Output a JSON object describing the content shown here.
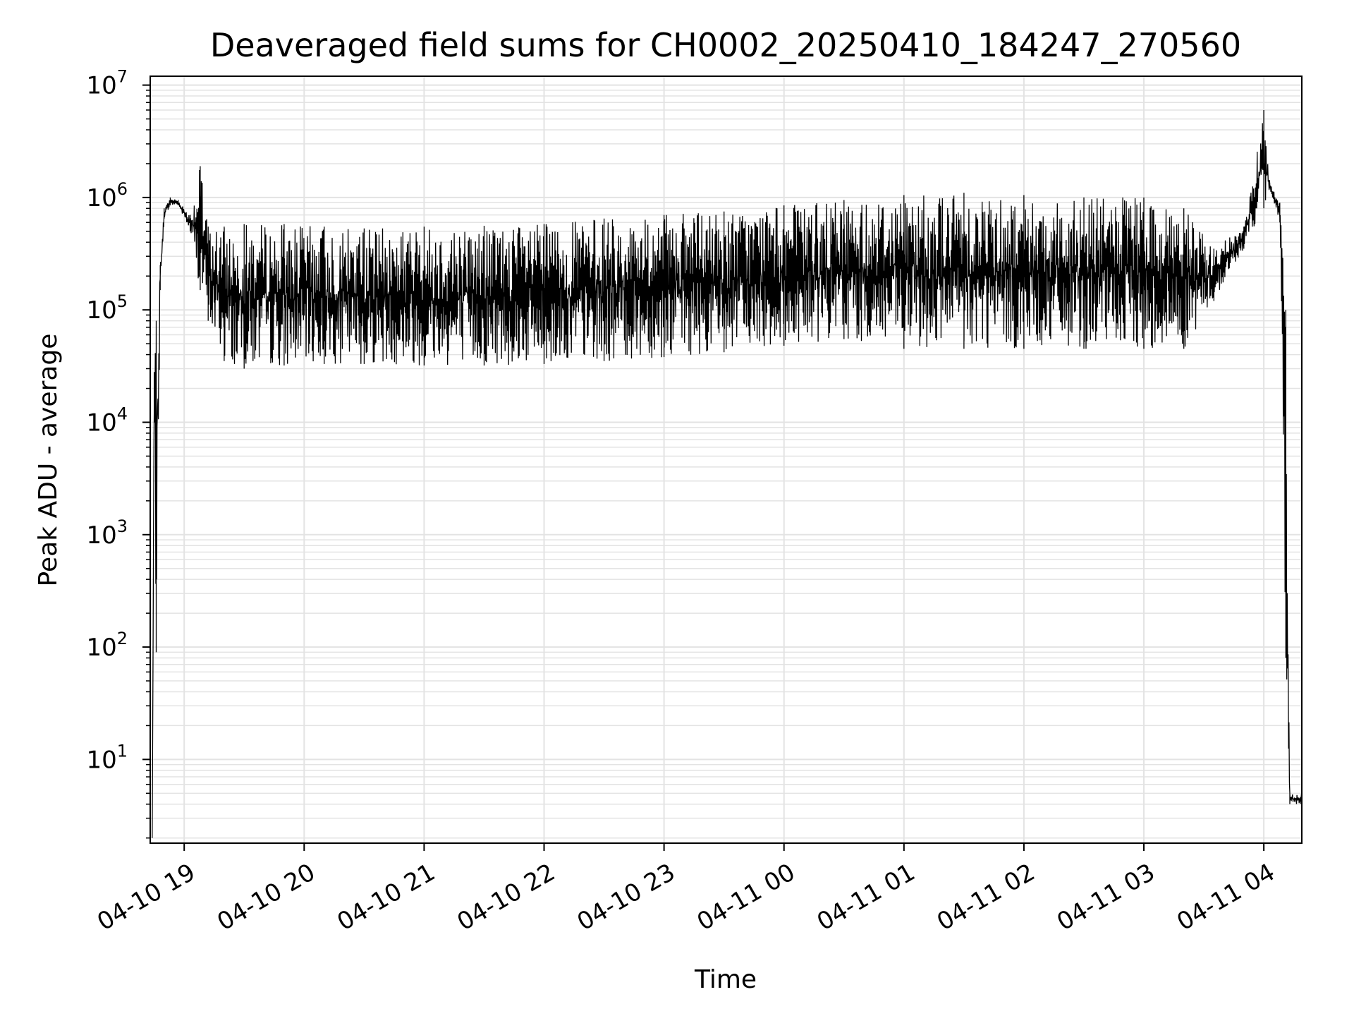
{
  "chart_data": {
    "type": "line",
    "title": "Deaveraged field sums for CH0002_20250410_184247_270560",
    "xlabel": "Time",
    "ylabel": "Peak ADU - average",
    "y_scale": "log",
    "ylim": [
      1.8,
      12000000
    ],
    "xlim": [
      "04-10 18:43",
      "04-11 04:19"
    ],
    "grid": true,
    "line_color": "#000000",
    "grid_color": "#e3e3e3",
    "x_ticks": [
      {
        "value": "04-10 19:00",
        "label": "04-10 19"
      },
      {
        "value": "04-10 20:00",
        "label": "04-10 20"
      },
      {
        "value": "04-10 21:00",
        "label": "04-10 21"
      },
      {
        "value": "04-10 22:00",
        "label": "04-10 22"
      },
      {
        "value": "04-10 23:00",
        "label": "04-10 23"
      },
      {
        "value": "04-11 00:00",
        "label": "04-11 00"
      },
      {
        "value": "04-11 01:00",
        "label": "04-11 01"
      },
      {
        "value": "04-11 02:00",
        "label": "04-11 02"
      },
      {
        "value": "04-11 03:00",
        "label": "04-11 03"
      },
      {
        "value": "04-11 04:00",
        "label": "04-11 04"
      }
    ],
    "y_ticks": [
      {
        "value": 10,
        "base": "10",
        "exp": "1"
      },
      {
        "value": 100,
        "base": "10",
        "exp": "2"
      },
      {
        "value": 1000,
        "base": "10",
        "exp": "3"
      },
      {
        "value": 10000,
        "base": "10",
        "exp": "4"
      },
      {
        "value": 100000,
        "base": "10",
        "exp": "5"
      },
      {
        "value": 1000000,
        "base": "10",
        "exp": "6"
      },
      {
        "value": 10000000,
        "base": "10",
        "exp": "7"
      }
    ],
    "series": [
      {
        "style": "noisy-band",
        "points": [
          {
            "x": "04-10 18:44",
            "low": 2,
            "high": 2
          },
          {
            "x": "04-10 18:45",
            "low": 15000,
            "high": 28000
          },
          {
            "x": "04-10 18:46",
            "low": 90,
            "high": 80000
          },
          {
            "x": "04-10 18:48",
            "low": 150000,
            "high": 250000
          },
          {
            "x": "04-10 18:50",
            "low": 650000,
            "high": 800000
          },
          {
            "x": "04-10 18:53",
            "low": 850000,
            "high": 1000000
          },
          {
            "x": "04-10 18:57",
            "low": 850000,
            "high": 950000
          },
          {
            "x": "04-10 19:03",
            "low": 500000,
            "high": 700000
          },
          {
            "x": "04-10 19:08",
            "low": 150000,
            "high": 1900000
          },
          {
            "x": "04-10 19:12",
            "low": 80000,
            "high": 550000
          },
          {
            "x": "04-10 19:20",
            "low": 35000,
            "high": 550000
          },
          {
            "x": "04-10 19:30",
            "low": 30000,
            "high": 580000
          },
          {
            "x": "04-10 19:50",
            "low": 32000,
            "high": 580000
          },
          {
            "x": "04-10 20:10",
            "low": 33000,
            "high": 550000
          },
          {
            "x": "04-10 20:30",
            "low": 33000,
            "high": 530000
          },
          {
            "x": "04-10 21:00",
            "low": 32000,
            "high": 550000
          },
          {
            "x": "04-10 21:30",
            "low": 32000,
            "high": 560000
          },
          {
            "x": "04-10 22:00",
            "low": 33000,
            "high": 580000
          },
          {
            "x": "04-10 22:30",
            "low": 35000,
            "high": 650000
          },
          {
            "x": "04-10 23:00",
            "low": 38000,
            "high": 700000
          },
          {
            "x": "04-10 23:30",
            "low": 42000,
            "high": 750000
          },
          {
            "x": "04-11 00:00",
            "low": 48000,
            "high": 850000
          },
          {
            "x": "04-11 00:30",
            "low": 55000,
            "high": 950000
          },
          {
            "x": "04-11 01:00",
            "low": 45000,
            "high": 1050000
          },
          {
            "x": "04-11 01:30",
            "low": 45000,
            "high": 1100000
          },
          {
            "x": "04-11 02:00",
            "low": 45000,
            "high": 1050000
          },
          {
            "x": "04-11 02:30",
            "low": 45000,
            "high": 1000000
          },
          {
            "x": "04-11 03:00",
            "low": 45000,
            "high": 1000000
          },
          {
            "x": "04-11 03:20",
            "low": 45000,
            "high": 800000
          },
          {
            "x": "04-11 03:35",
            "low": 120000,
            "high": 350000
          },
          {
            "x": "04-11 03:50",
            "low": 350000,
            "high": 550000
          },
          {
            "x": "04-11 04:00",
            "low": 800000,
            "high": 6000000
          },
          {
            "x": "04-11 04:03",
            "low": 1200000,
            "high": 1350000
          },
          {
            "x": "04-11 04:08",
            "low": 600000,
            "high": 900000
          },
          {
            "x": "04-11 04:11",
            "low": 80,
            "high": 100000
          },
          {
            "x": "04-11 04:13",
            "low": 4,
            "high": 5
          },
          {
            "x": "04-11 04:19",
            "low": 4,
            "high": 5
          }
        ]
      }
    ]
  }
}
